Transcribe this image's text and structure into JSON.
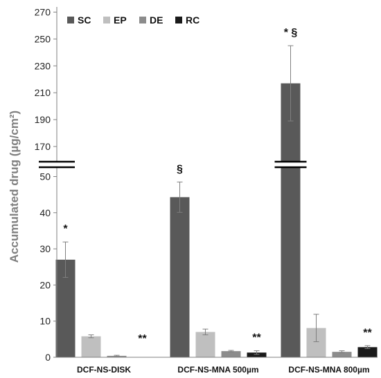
{
  "chart_data": {
    "type": "bar",
    "xlabel": "",
    "ylabel": "Accumulated drug (µg/cm²)",
    "categories": [
      "DCF-NS-DISK",
      "DCF-NS-MNA 500µm",
      "DCF-NS-MNA 800µm"
    ],
    "series": [
      {
        "name": "SC",
        "color": "#595959",
        "values": [
          27,
          44.3,
          217
        ],
        "errors": [
          4.9,
          4.2,
          28
        ]
      },
      {
        "name": "EP",
        "color": "#bfbfbf",
        "values": [
          5.8,
          7.0,
          8.1
        ],
        "errors": [
          0.4,
          0.8,
          3.8
        ]
      },
      {
        "name": "DE",
        "color": "#8c8c8c",
        "values": [
          0.4,
          1.7,
          1.5
        ],
        "errors": [
          0.15,
          0.2,
          0.3
        ]
      },
      {
        "name": "RC",
        "color": "#1a1a1a",
        "values": [
          0,
          1.3,
          2.8
        ],
        "errors": [
          0,
          0.5,
          0.4
        ]
      }
    ],
    "y_axis": {
      "broken": true,
      "lower_segment": {
        "range": [
          0,
          50
        ],
        "ticks": [
          0,
          10,
          20,
          30,
          40,
          50
        ]
      },
      "upper_segment": {
        "range": [
          170,
          270
        ],
        "ticks": [
          170,
          190,
          210,
          230,
          250,
          270
        ]
      }
    },
    "grid": false,
    "legend": "top-left",
    "annotations": [
      {
        "text": "*",
        "category": "DCF-NS-DISK",
        "series": "SC"
      },
      {
        "text": "**",
        "category": "DCF-NS-DISK",
        "series": "RC"
      },
      {
        "text": "§",
        "category": "DCF-NS-MNA 500µm",
        "series": "SC"
      },
      {
        "text": "**",
        "category": "DCF-NS-MNA 500µm",
        "series": "RC"
      },
      {
        "text": "* §",
        "category": "DCF-NS-MNA 800µm",
        "series": "SC"
      },
      {
        "text": "**",
        "category": "DCF-NS-MNA 800µm",
        "series": "RC"
      }
    ]
  }
}
